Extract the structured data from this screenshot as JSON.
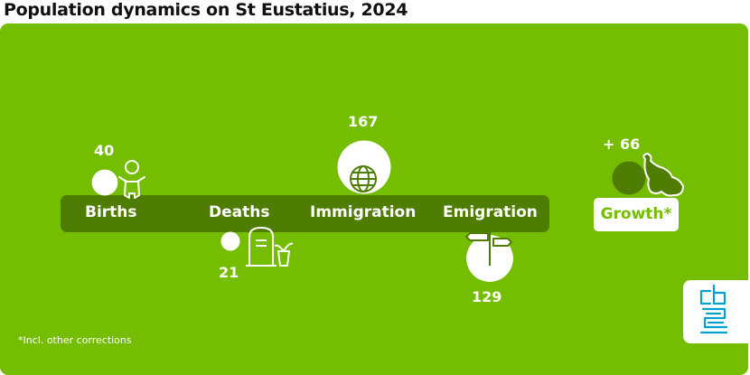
{
  "title": "Population dynamics on St Eustatius, 2024",
  "colors": {
    "panel": "#75bd00",
    "band": "#4f7d03",
    "bubble": "#ffffff",
    "growth_bubble": "#4f7d03",
    "logo": "#00a1cd"
  },
  "chart_data": {
    "type": "bubble",
    "title": "Population dynamics on St Eustatius, 2024",
    "categories": [
      "Births",
      "Deaths",
      "Immigration",
      "Emigration",
      "Growth*"
    ],
    "values": [
      40,
      21,
      167,
      129,
      66
    ],
    "value_labels": [
      "40",
      "21",
      "167",
      "129",
      "+ 66"
    ],
    "icons": [
      "baby-icon",
      "gravestone-icon",
      "globe-icon",
      "signpost-icon",
      "island-icon"
    ],
    "footnote": "*Incl. other corrections"
  }
}
